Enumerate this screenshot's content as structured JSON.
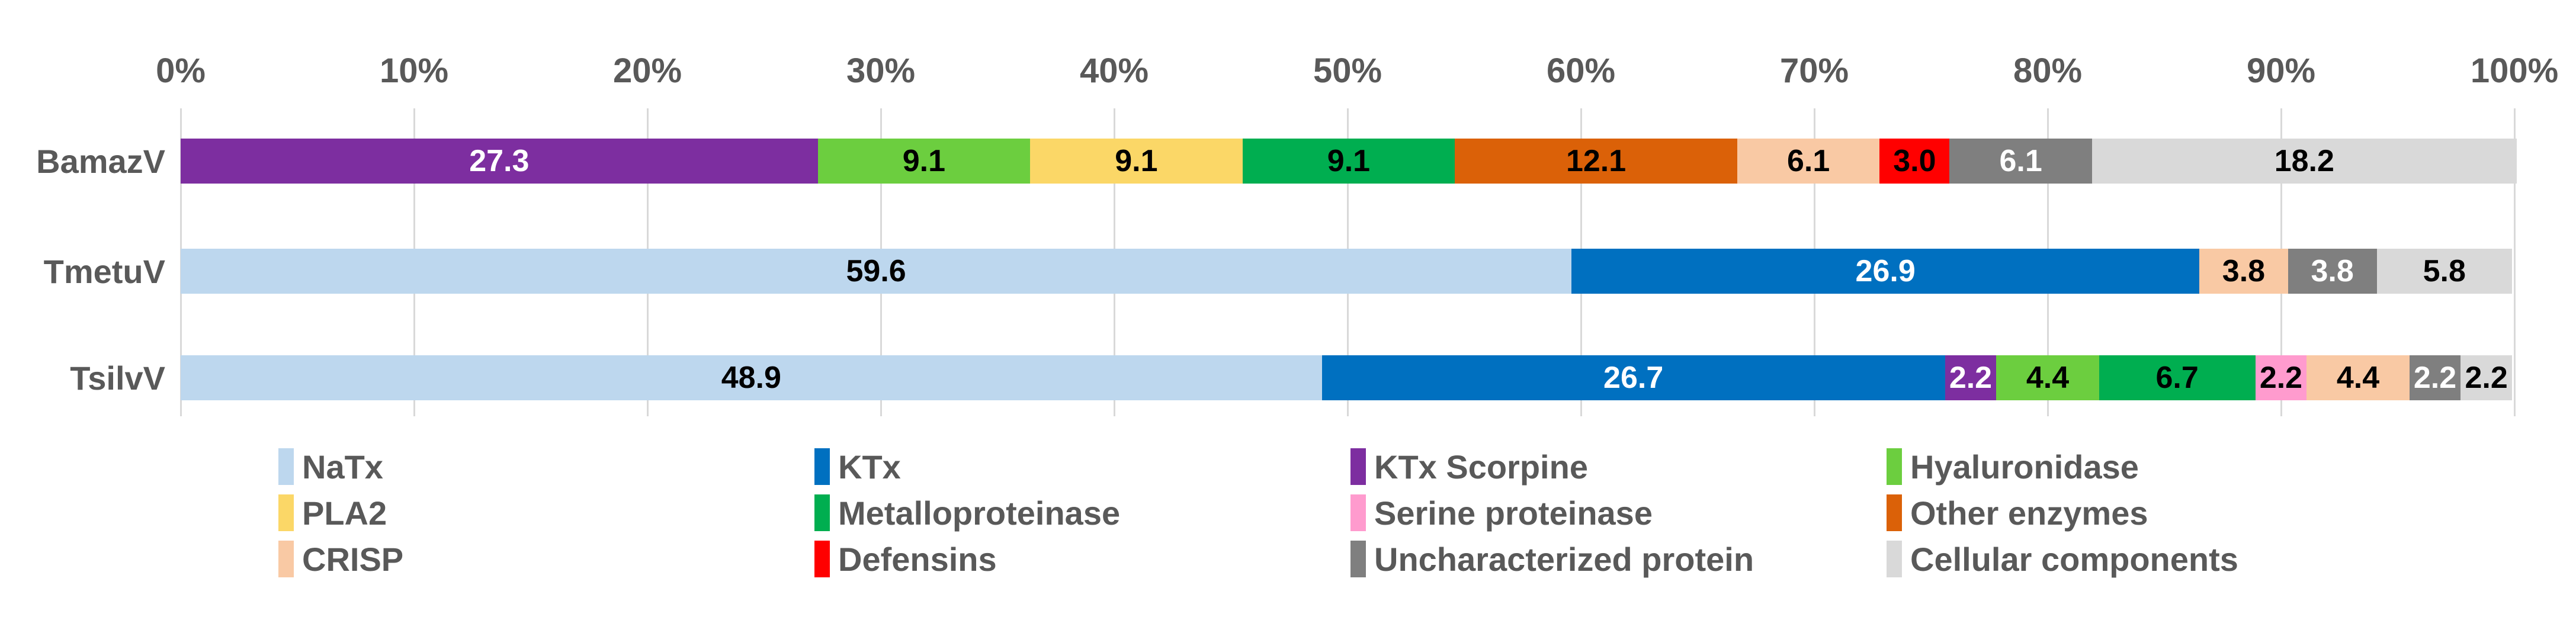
{
  "chart_data": {
    "type": "bar",
    "subtype": "horizontal-stacked-100pct",
    "title": "",
    "xlabel": "",
    "ylabel": "",
    "grid": true,
    "legend_position": "bottom",
    "axis_text_color": "#595959",
    "gridline_color": "#d9d9d9",
    "x_axis": {
      "range": [
        0,
        100
      ],
      "ticks": [
        "0%",
        "10%",
        "20%",
        "30%",
        "40%",
        "50%",
        "60%",
        "70%",
        "80%",
        "90%",
        "100%"
      ]
    },
    "categories": [
      "BamazV",
      "TmetuV",
      "TsilvV"
    ],
    "series": [
      {
        "name": "NaTx",
        "color": "#BDD7EE",
        "label_color": "#000000",
        "values": [
          0,
          59.6,
          48.9
        ],
        "labels": [
          "",
          "59.6",
          "48.9"
        ]
      },
      {
        "name": "KTx",
        "color": "#0070C0",
        "label_color": "#FFFFFF",
        "values": [
          0,
          26.9,
          26.7
        ],
        "labels": [
          "",
          "26.9",
          "26.7"
        ]
      },
      {
        "name": "KTx Scorpine",
        "color": "#7D2EA0",
        "label_color": "#FFFFFF",
        "values": [
          27.3,
          0,
          2.2
        ],
        "labels": [
          "27.3",
          "",
          "2.2"
        ]
      },
      {
        "name": "Hyaluronidase",
        "color": "#6CCE3F",
        "label_color": "#000000",
        "values": [
          9.1,
          0,
          4.4
        ],
        "labels": [
          "9.1",
          "",
          "4.4"
        ]
      },
      {
        "name": "PLA2",
        "color": "#FBD767",
        "label_color": "#000000",
        "values": [
          9.1,
          0,
          0
        ],
        "labels": [
          "9.1",
          "",
          ""
        ]
      },
      {
        "name": "Metalloproteinase",
        "color": "#00AE50",
        "label_color": "#000000",
        "values": [
          9.1,
          0,
          6.7
        ],
        "labels": [
          "9.1",
          "",
          "6.7"
        ]
      },
      {
        "name": "Serine proteinase",
        "color": "#FF9BCE",
        "label_color": "#000000",
        "values": [
          0,
          0,
          2.2
        ],
        "labels": [
          "",
          "",
          "2.2"
        ]
      },
      {
        "name": "Other enzymes",
        "color": "#DB6108",
        "label_color": "#000000",
        "values": [
          12.1,
          0,
          0
        ],
        "labels": [
          "12.1",
          "",
          ""
        ]
      },
      {
        "name": "CRISP",
        "color": "#F9C9A4",
        "label_color": "#000000",
        "values": [
          6.1,
          3.8,
          4.4
        ],
        "labels": [
          "6.1",
          "3.8",
          "4.4"
        ]
      },
      {
        "name": "Defensins",
        "color": "#FF0000",
        "label_color": "#000000",
        "values": [
          3.0,
          0,
          0
        ],
        "labels": [
          "3.0",
          "",
          ""
        ]
      },
      {
        "name": "Uncharacterized protein",
        "color": "#7F7F7F",
        "label_color": "#FFFFFF",
        "values": [
          6.1,
          3.8,
          2.2
        ],
        "labels": [
          "6.1",
          "3.8",
          "2.2"
        ]
      },
      {
        "name": "Cellular components",
        "color": "#D9D9D9",
        "label_color": "#000000",
        "values": [
          18.2,
          5.8,
          2.2
        ],
        "labels": [
          "18.2",
          "5.8",
          "2.2"
        ]
      }
    ]
  },
  "layout_note_visible_text_only": true
}
